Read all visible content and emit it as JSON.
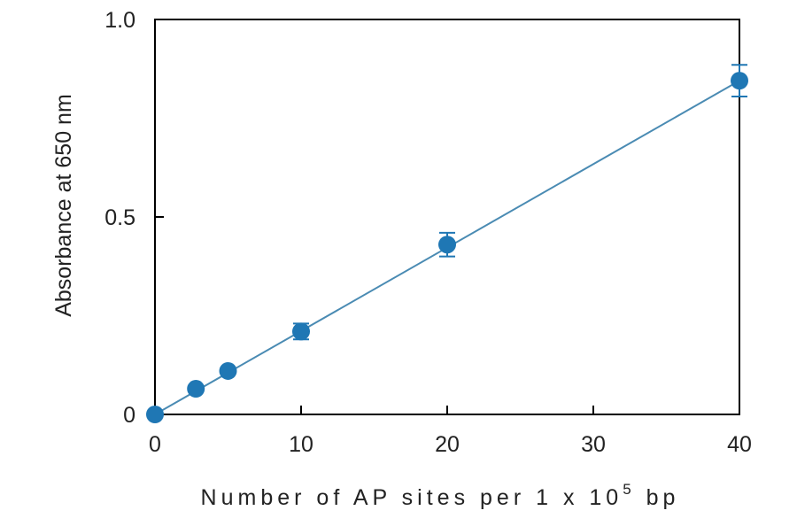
{
  "chart_data": {
    "type": "scatter",
    "title": "",
    "xlabel": "Number of AP sites per 1 x 10",
    "xlabel_superscript": "5",
    "xlabel_suffix": " bp",
    "ylabel": "Absorbance at 650 nm",
    "xlim": [
      0,
      40
    ],
    "ylim": [
      0,
      1.0
    ],
    "x_ticks": [
      0,
      10,
      20,
      30,
      40
    ],
    "x_tick_labels": [
      "0",
      "10",
      "20",
      "30",
      "40"
    ],
    "y_ticks": [
      0,
      0.5,
      1.0
    ],
    "y_tick_labels": [
      "0",
      "0.5",
      "1.0"
    ],
    "grid": false,
    "series": [
      {
        "points": [
          {
            "x": 0,
            "y": 0.0,
            "err": 0.0
          },
          {
            "x": 2.8,
            "y": 0.065,
            "err": 0.0
          },
          {
            "x": 5,
            "y": 0.11,
            "err": 0.0
          },
          {
            "x": 10,
            "y": 0.21,
            "err": 0.02
          },
          {
            "x": 20,
            "y": 0.43,
            "err": 0.03
          },
          {
            "x": 40,
            "y": 0.845,
            "err": 0.04
          }
        ],
        "fit_line": {
          "x": [
            0,
            40
          ],
          "y": [
            0.0,
            0.845
          ]
        }
      }
    ],
    "colors": {
      "marker": "#1f77b4",
      "line": "#4a8bb3",
      "axis": "#000000"
    }
  }
}
